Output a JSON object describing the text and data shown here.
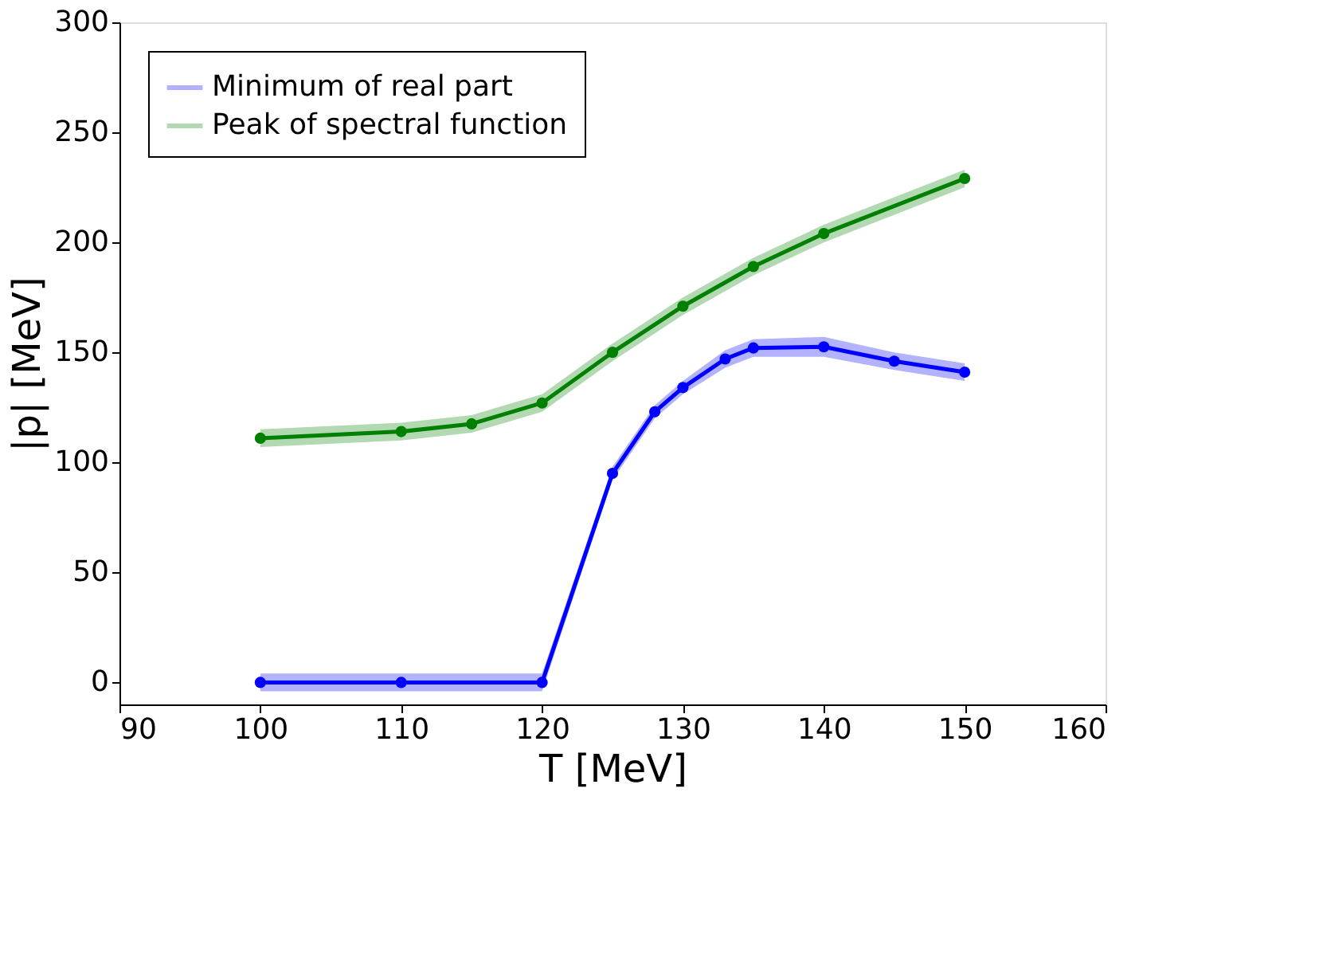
{
  "chart_data": {
    "type": "line",
    "xlabel": "T [MeV]",
    "ylabel": "|p| [MeV]",
    "xlim": [
      90,
      160
    ],
    "xticks": [
      90,
      100,
      110,
      120,
      130,
      140,
      150,
      160
    ],
    "ylim": [
      -10,
      300
    ],
    "yticks": [
      0,
      50,
      100,
      150,
      200,
      250,
      300
    ],
    "grid": false,
    "legend": "top left",
    "marker": "circle",
    "line_style": "solid",
    "series": [
      {
        "name": "Minimum of real part",
        "color": "#0000ff",
        "x": [
          100,
          110,
          120,
          125,
          128,
          130,
          133,
          135,
          140,
          145,
          150
        ],
        "values": [
          0,
          0,
          0,
          95,
          123,
          134,
          147,
          152,
          152.5,
          146,
          141
        ],
        "lower": [
          -4,
          -4,
          -4,
          92,
          120,
          131,
          143,
          148,
          148,
          142,
          137
        ],
        "upper": [
          4,
          4,
          4,
          98,
          126,
          137,
          151,
          156,
          157,
          150,
          145
        ]
      },
      {
        "name": "Peak of spectral function",
        "color": "#008000",
        "x": [
          100,
          110,
          115,
          120,
          125,
          130,
          135,
          140,
          150
        ],
        "values": [
          111,
          114,
          117.5,
          127,
          150,
          171,
          189,
          204,
          229
        ],
        "lower": [
          107,
          110,
          113.5,
          123,
          146,
          167,
          185,
          200,
          225
        ],
        "upper": [
          115,
          118,
          121.5,
          131,
          154,
          175,
          193,
          208,
          233
        ]
      }
    ]
  }
}
